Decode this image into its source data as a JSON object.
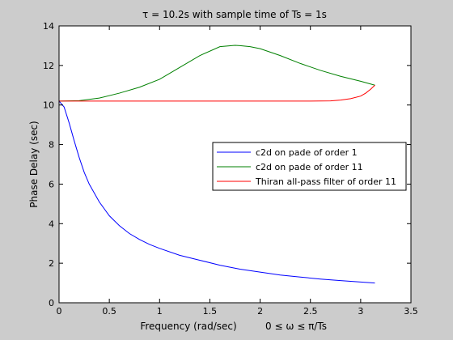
{
  "chart_data": {
    "type": "line",
    "title": "τ = 10.2s with sample time of Ts = 1s",
    "xlabel": "Frequency (rad/sec)",
    "xlabel_extra": "0 ≤ ω ≤ π/Ts",
    "ylabel": "Phase Delay (sec)",
    "xlim": [
      0,
      3.5
    ],
    "ylim": [
      0,
      14
    ],
    "x_ticks": [
      0,
      0.5,
      1,
      1.5,
      2,
      2.5,
      3,
      3.5
    ],
    "x_tick_labels": [
      "0",
      "0.5",
      "1",
      "1.5",
      "2",
      "2.5",
      "3",
      "3.5"
    ],
    "y_ticks": [
      0,
      2,
      4,
      6,
      8,
      10,
      12,
      14
    ],
    "y_tick_labels": [
      "0",
      "2",
      "4",
      "6",
      "8",
      "10",
      "12",
      "14"
    ],
    "grid": false,
    "legend_position": "right",
    "series": [
      {
        "name": "c2d on pade of order 1",
        "color": "#0000ff",
        "x": [
          0,
          0.05,
          0.1,
          0.15,
          0.2,
          0.25,
          0.3,
          0.4,
          0.5,
          0.6,
          0.7,
          0.8,
          0.9,
          1.0,
          1.2,
          1.4,
          1.6,
          1.8,
          2.0,
          2.2,
          2.4,
          2.6,
          2.8,
          3.0,
          3.1416
        ],
        "y": [
          10.2,
          9.9,
          9.1,
          8.2,
          7.35,
          6.6,
          6.0,
          5.1,
          4.4,
          3.9,
          3.5,
          3.2,
          2.95,
          2.75,
          2.4,
          2.15,
          1.9,
          1.7,
          1.55,
          1.4,
          1.3,
          1.2,
          1.12,
          1.05,
          1.0
        ]
      },
      {
        "name": "c2d on pade of order 11",
        "color": "#008000",
        "x": [
          0,
          0.2,
          0.4,
          0.6,
          0.8,
          1.0,
          1.2,
          1.4,
          1.6,
          1.75,
          1.8,
          1.9,
          2.0,
          2.2,
          2.4,
          2.6,
          2.8,
          3.0,
          3.1416
        ],
        "y": [
          10.2,
          10.22,
          10.35,
          10.6,
          10.9,
          11.3,
          11.9,
          12.5,
          12.95,
          13.02,
          13.0,
          12.95,
          12.85,
          12.5,
          12.1,
          11.75,
          11.45,
          11.2,
          11.0
        ]
      },
      {
        "name": "Thiran all-pass filter of order 11",
        "color": "#ff0000",
        "x": [
          0,
          0.5,
          1.0,
          1.5,
          2.0,
          2.5,
          2.7,
          2.8,
          2.9,
          3.0,
          3.05,
          3.1,
          3.1416
        ],
        "y": [
          10.2,
          10.2,
          10.2,
          10.2,
          10.2,
          10.2,
          10.21,
          10.25,
          10.32,
          10.45,
          10.6,
          10.8,
          11.0
        ]
      }
    ]
  }
}
